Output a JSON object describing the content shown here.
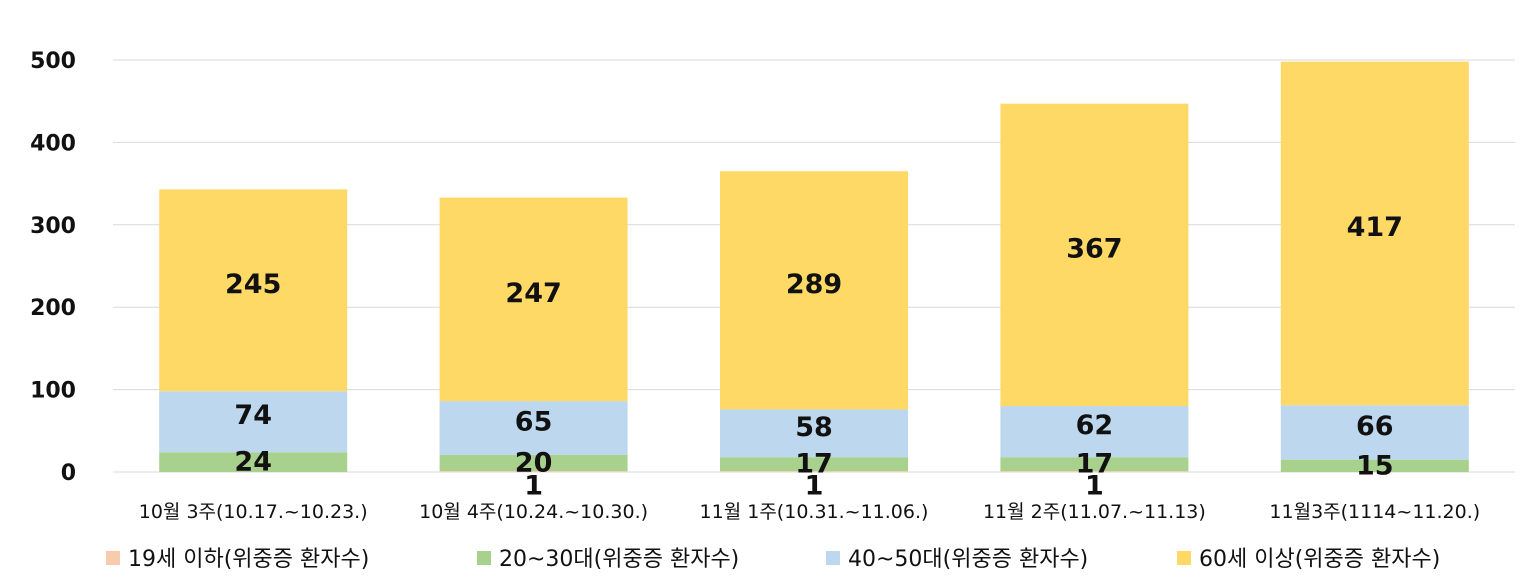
{
  "chart_data": {
    "type": "bar",
    "stacked": true,
    "categories": [
      "10월 3주(10.17.~10.23.)",
      "10월 4주(10.24.~10.30.)",
      "11월 1주(10.31.~11.06.)",
      "11월 2주(11.07.~11.13)",
      "11월3주(1114~11.20.)"
    ],
    "series": [
      {
        "name": "19세 이하(위중증 환자수)",
        "color": "#f8cbad",
        "values": [
          0,
          1,
          1,
          1,
          0
        ],
        "labels": [
          "",
          "1",
          "1",
          "1",
          ""
        ]
      },
      {
        "name": "20~30대(위중증 환자수)",
        "color": "#a9d18e",
        "values": [
          24,
          20,
          17,
          17,
          15
        ],
        "labels": [
          "24",
          "20",
          "17",
          "17",
          "15"
        ]
      },
      {
        "name": "40~50대(위중증 환자수)",
        "color": "#bdd7ee",
        "values": [
          74,
          65,
          58,
          62,
          66
        ],
        "labels": [
          "74",
          "65",
          "58",
          "62",
          "66"
        ]
      },
      {
        "name": "60세 이상(위중증 환자수)",
        "color": "#ffd966",
        "values": [
          245,
          247,
          289,
          367,
          417
        ],
        "labels": [
          "245",
          "247",
          "289",
          "367",
          "417"
        ]
      }
    ],
    "ylim": [
      0,
      500
    ],
    "yticks": [
      0,
      100,
      200,
      300,
      400,
      500
    ],
    "grid": true,
    "legend_position": "bottom"
  }
}
